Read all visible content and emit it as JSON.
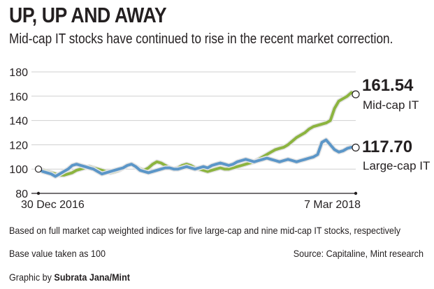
{
  "header": {
    "title": "UP, UP AND AWAY",
    "subtitle": "Mid-cap IT stocks have continued to rise in the recent market correction."
  },
  "chart_data": {
    "type": "line",
    "ylim": [
      80,
      180
    ],
    "yticks": [
      80,
      100,
      120,
      140,
      160,
      180
    ],
    "x_start_label": "30 Dec 2016",
    "x_end_label": "7 Mar 2018",
    "grid": true,
    "series": [
      {
        "name": "Mid-cap IT",
        "end_value_label": "161.54",
        "color": "#8cb43f",
        "values": [
          100,
          99,
          98,
          97,
          96,
          95,
          95,
          96,
          97,
          99,
          100,
          101,
          102,
          101,
          100,
          99,
          98,
          97,
          98,
          99,
          101,
          103,
          104,
          102,
          100,
          99,
          101,
          104,
          106,
          105,
          103,
          101,
          100,
          101,
          103,
          104,
          103,
          101,
          100,
          99,
          98,
          99,
          100,
          101,
          100,
          100,
          101,
          102,
          103,
          104,
          105,
          106,
          108,
          110,
          112,
          114,
          116,
          117,
          118,
          120,
          123,
          126,
          128,
          130,
          133,
          135,
          136,
          137,
          138,
          140,
          150,
          156,
          158,
          160,
          163,
          161.54
        ]
      },
      {
        "name": "Large-cap IT",
        "end_value_label": "117.70",
        "color": "#5b96c8",
        "values": [
          100,
          98,
          97,
          96,
          94,
          96,
          98,
          100,
          103,
          104,
          103,
          102,
          101,
          100,
          98,
          96,
          97,
          98,
          99,
          100,
          101,
          103,
          104,
          102,
          99,
          98,
          97,
          98,
          99,
          100,
          101,
          101,
          100,
          100,
          101,
          102,
          101,
          100,
          101,
          102,
          101,
          103,
          104,
          105,
          104,
          103,
          104,
          106,
          107,
          108,
          107,
          106,
          107,
          108,
          109,
          108,
          107,
          106,
          107,
          108,
          107,
          106,
          107,
          108,
          109,
          110,
          112,
          122,
          124,
          120,
          116,
          114,
          115,
          117,
          118,
          117.7
        ]
      }
    ]
  },
  "notes": {
    "methodology": "Based on full market cap weighted indices for five large-cap and nine mid-cap IT stocks, respectively",
    "base": "Base value taken as 100",
    "source": "Source: Capitaline, Mint research",
    "credit_prefix": "Graphic by ",
    "credit_name": "Subrata Jana/Mint"
  }
}
